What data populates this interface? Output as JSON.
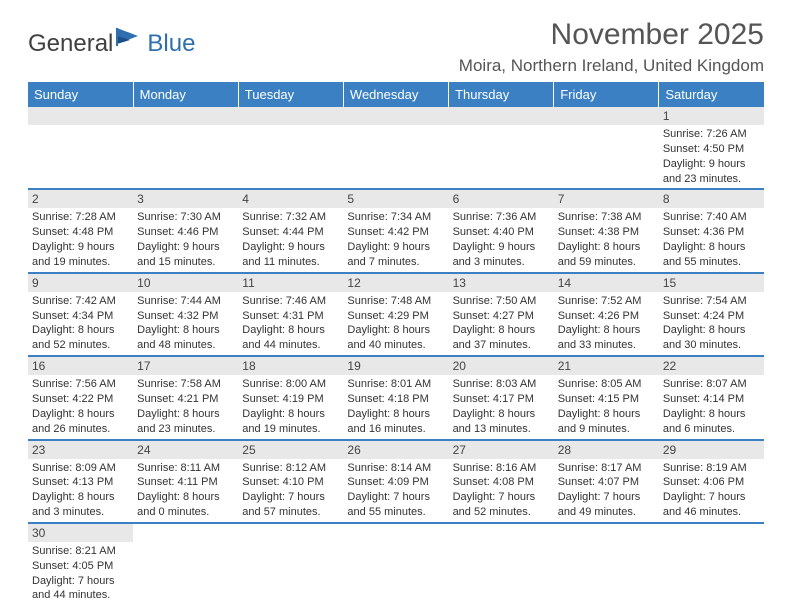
{
  "logo": {
    "text_general": "General",
    "text_blue": "Blue"
  },
  "title": "November 2025",
  "location": "Moira, Northern Ireland, United Kingdom",
  "columns": [
    "Sunday",
    "Monday",
    "Tuesday",
    "Wednesday",
    "Thursday",
    "Friday",
    "Saturday"
  ],
  "colors": {
    "header_bg": "#3a80c3",
    "header_text": "#ffffff",
    "daynum_bg": "#e8e8e8",
    "border": "#3a80c3",
    "title_color": "#555555"
  },
  "fonts": {
    "month_title_size": 30,
    "location_size": 17,
    "th_size": 13,
    "cell_size": 11,
    "daynum_size": 12
  },
  "weeks": [
    [
      null,
      null,
      null,
      null,
      null,
      null,
      {
        "n": "1",
        "sunrise": "Sunrise: 7:26 AM",
        "sunset": "Sunset: 4:50 PM",
        "day1": "Daylight: 9 hours",
        "day2": "and 23 minutes."
      }
    ],
    [
      {
        "n": "2",
        "sunrise": "Sunrise: 7:28 AM",
        "sunset": "Sunset: 4:48 PM",
        "day1": "Daylight: 9 hours",
        "day2": "and 19 minutes."
      },
      {
        "n": "3",
        "sunrise": "Sunrise: 7:30 AM",
        "sunset": "Sunset: 4:46 PM",
        "day1": "Daylight: 9 hours",
        "day2": "and 15 minutes."
      },
      {
        "n": "4",
        "sunrise": "Sunrise: 7:32 AM",
        "sunset": "Sunset: 4:44 PM",
        "day1": "Daylight: 9 hours",
        "day2": "and 11 minutes."
      },
      {
        "n": "5",
        "sunrise": "Sunrise: 7:34 AM",
        "sunset": "Sunset: 4:42 PM",
        "day1": "Daylight: 9 hours",
        "day2": "and 7 minutes."
      },
      {
        "n": "6",
        "sunrise": "Sunrise: 7:36 AM",
        "sunset": "Sunset: 4:40 PM",
        "day1": "Daylight: 9 hours",
        "day2": "and 3 minutes."
      },
      {
        "n": "7",
        "sunrise": "Sunrise: 7:38 AM",
        "sunset": "Sunset: 4:38 PM",
        "day1": "Daylight: 8 hours",
        "day2": "and 59 minutes."
      },
      {
        "n": "8",
        "sunrise": "Sunrise: 7:40 AM",
        "sunset": "Sunset: 4:36 PM",
        "day1": "Daylight: 8 hours",
        "day2": "and 55 minutes."
      }
    ],
    [
      {
        "n": "9",
        "sunrise": "Sunrise: 7:42 AM",
        "sunset": "Sunset: 4:34 PM",
        "day1": "Daylight: 8 hours",
        "day2": "and 52 minutes."
      },
      {
        "n": "10",
        "sunrise": "Sunrise: 7:44 AM",
        "sunset": "Sunset: 4:32 PM",
        "day1": "Daylight: 8 hours",
        "day2": "and 48 minutes."
      },
      {
        "n": "11",
        "sunrise": "Sunrise: 7:46 AM",
        "sunset": "Sunset: 4:31 PM",
        "day1": "Daylight: 8 hours",
        "day2": "and 44 minutes."
      },
      {
        "n": "12",
        "sunrise": "Sunrise: 7:48 AM",
        "sunset": "Sunset: 4:29 PM",
        "day1": "Daylight: 8 hours",
        "day2": "and 40 minutes."
      },
      {
        "n": "13",
        "sunrise": "Sunrise: 7:50 AM",
        "sunset": "Sunset: 4:27 PM",
        "day1": "Daylight: 8 hours",
        "day2": "and 37 minutes."
      },
      {
        "n": "14",
        "sunrise": "Sunrise: 7:52 AM",
        "sunset": "Sunset: 4:26 PM",
        "day1": "Daylight: 8 hours",
        "day2": "and 33 minutes."
      },
      {
        "n": "15",
        "sunrise": "Sunrise: 7:54 AM",
        "sunset": "Sunset: 4:24 PM",
        "day1": "Daylight: 8 hours",
        "day2": "and 30 minutes."
      }
    ],
    [
      {
        "n": "16",
        "sunrise": "Sunrise: 7:56 AM",
        "sunset": "Sunset: 4:22 PM",
        "day1": "Daylight: 8 hours",
        "day2": "and 26 minutes."
      },
      {
        "n": "17",
        "sunrise": "Sunrise: 7:58 AM",
        "sunset": "Sunset: 4:21 PM",
        "day1": "Daylight: 8 hours",
        "day2": "and 23 minutes."
      },
      {
        "n": "18",
        "sunrise": "Sunrise: 8:00 AM",
        "sunset": "Sunset: 4:19 PM",
        "day1": "Daylight: 8 hours",
        "day2": "and 19 minutes."
      },
      {
        "n": "19",
        "sunrise": "Sunrise: 8:01 AM",
        "sunset": "Sunset: 4:18 PM",
        "day1": "Daylight: 8 hours",
        "day2": "and 16 minutes."
      },
      {
        "n": "20",
        "sunrise": "Sunrise: 8:03 AM",
        "sunset": "Sunset: 4:17 PM",
        "day1": "Daylight: 8 hours",
        "day2": "and 13 minutes."
      },
      {
        "n": "21",
        "sunrise": "Sunrise: 8:05 AM",
        "sunset": "Sunset: 4:15 PM",
        "day1": "Daylight: 8 hours",
        "day2": "and 9 minutes."
      },
      {
        "n": "22",
        "sunrise": "Sunrise: 8:07 AM",
        "sunset": "Sunset: 4:14 PM",
        "day1": "Daylight: 8 hours",
        "day2": "and 6 minutes."
      }
    ],
    [
      {
        "n": "23",
        "sunrise": "Sunrise: 8:09 AM",
        "sunset": "Sunset: 4:13 PM",
        "day1": "Daylight: 8 hours",
        "day2": "and 3 minutes."
      },
      {
        "n": "24",
        "sunrise": "Sunrise: 8:11 AM",
        "sunset": "Sunset: 4:11 PM",
        "day1": "Daylight: 8 hours",
        "day2": "and 0 minutes."
      },
      {
        "n": "25",
        "sunrise": "Sunrise: 8:12 AM",
        "sunset": "Sunset: 4:10 PM",
        "day1": "Daylight: 7 hours",
        "day2": "and 57 minutes."
      },
      {
        "n": "26",
        "sunrise": "Sunrise: 8:14 AM",
        "sunset": "Sunset: 4:09 PM",
        "day1": "Daylight: 7 hours",
        "day2": "and 55 minutes."
      },
      {
        "n": "27",
        "sunrise": "Sunrise: 8:16 AM",
        "sunset": "Sunset: 4:08 PM",
        "day1": "Daylight: 7 hours",
        "day2": "and 52 minutes."
      },
      {
        "n": "28",
        "sunrise": "Sunrise: 8:17 AM",
        "sunset": "Sunset: 4:07 PM",
        "day1": "Daylight: 7 hours",
        "day2": "and 49 minutes."
      },
      {
        "n": "29",
        "sunrise": "Sunrise: 8:19 AM",
        "sunset": "Sunset: 4:06 PM",
        "day1": "Daylight: 7 hours",
        "day2": "and 46 minutes."
      }
    ],
    [
      {
        "n": "30",
        "sunrise": "Sunrise: 8:21 AM",
        "sunset": "Sunset: 4:05 PM",
        "day1": "Daylight: 7 hours",
        "day2": "and 44 minutes."
      },
      null,
      null,
      null,
      null,
      null,
      null
    ]
  ]
}
